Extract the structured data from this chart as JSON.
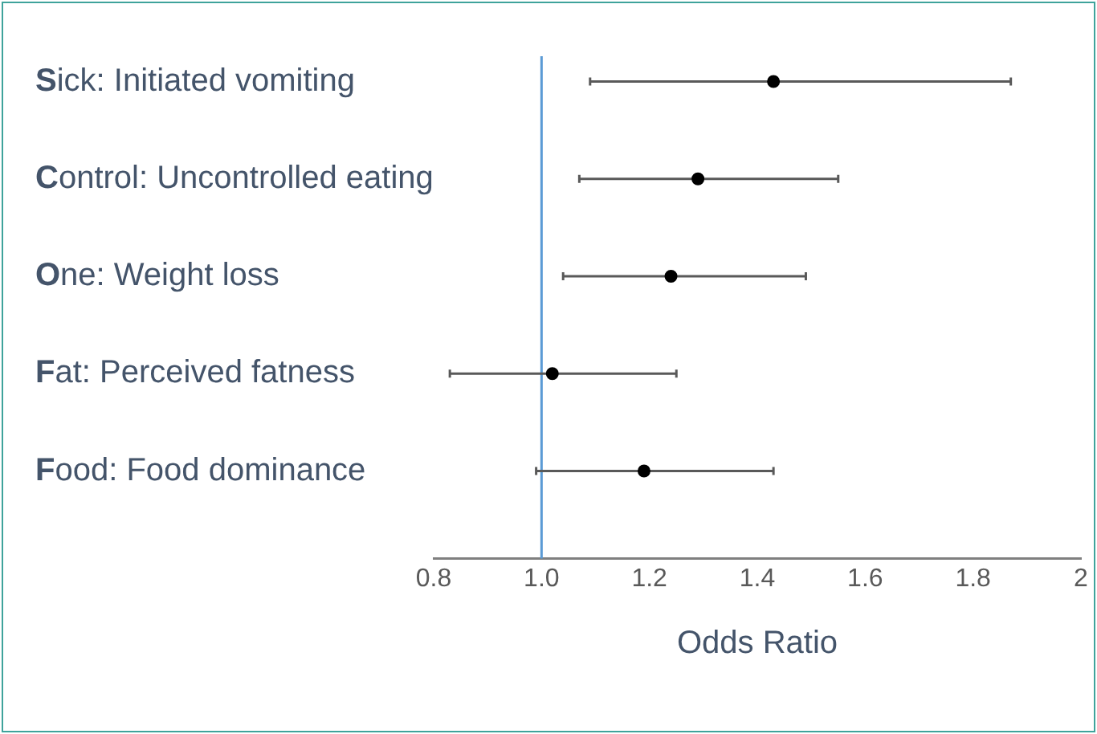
{
  "chart_data": {
    "type": "scatter",
    "orientation": "horizontal",
    "xlabel": "Odds Ratio",
    "categories": [
      "Sick: Initiated vomiting",
      "Control: Uncontrolled eating",
      "One: Weight loss",
      "Fat: Perceived fatness",
      "Food: Food dominance"
    ],
    "values": [
      1.43,
      1.29,
      1.24,
      1.02,
      1.19
    ],
    "errors": [
      [
        1.09,
        1.87
      ],
      [
        1.07,
        1.55
      ],
      [
        1.04,
        1.49
      ],
      [
        0.83,
        1.25
      ],
      [
        0.99,
        1.43
      ]
    ],
    "color": "#000000",
    "xlim": [
      0.8,
      2
    ],
    "xticks": [
      0.8,
      {
        "value": 1,
        "label": "1.0"
      },
      1.2,
      1.4,
      1.6,
      1.8,
      2
    ],
    "ref_lines": [
      {
        "axis": "x",
        "value": 1,
        "color": "#5b9bd5"
      }
    ],
    "grid": false,
    "legend": false,
    "marker": "circle"
  }
}
